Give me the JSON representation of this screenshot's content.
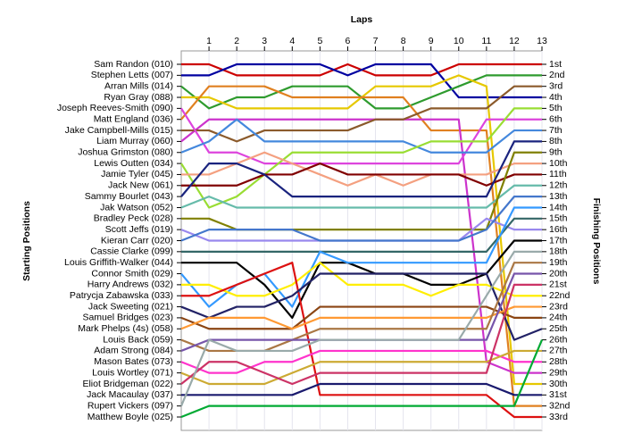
{
  "chart_data": {
    "type": "line",
    "title": "Laps",
    "ylabel": "Starting Positions",
    "y2label": "Finishing Positions",
    "x": [
      0,
      1,
      2,
      3,
      4,
      5,
      6,
      7,
      8,
      9,
      10,
      11,
      12,
      13
    ],
    "xlim": [
      0,
      13
    ],
    "xticks": [
      1,
      2,
      3,
      4,
      5,
      6,
      7,
      8,
      9,
      10,
      11,
      12,
      13
    ],
    "ylim": [
      1,
      33
    ],
    "grid": true,
    "categories": [
      "Sam Randon (010)",
      "Stephen Letts (007)",
      "Arran Mills (014)",
      "Ryan Gray (088)",
      "Joseph Reeves-Smith (090)",
      "Matt England (036)",
      "Jake Campbell-Mills (015)",
      "Liam Murray (060)",
      "Joshua Grimston (080)",
      "Lewis Outten (034)",
      "Jamie Tyler (045)",
      "Jack New (061)",
      "Sammy Bourlet (043)",
      "Jak Watson (052)",
      "Bradley Peck (028)",
      "Scott Jeffs (019)",
      "Kieran Carr (020)",
      "Cassie Clarke (099)",
      "Louis Griffith-Walker (044)",
      "Connor Smith (029)",
      "Harry Andrews (032)",
      "Patrycja Zabawska (033)",
      "Jack Sweeting (021)",
      "Samuel Bridges (023)",
      "Mark Phelps (4s) (058)",
      "Louis Back (059)",
      "Adam Strong (084)",
      "Mason Bates (073)",
      "Louis Wortley (071)",
      "Eliot Bridgeman (022)",
      "Jack Macaulay (037)",
      "Rupert Vickers (097)",
      "Matthew Boyle (025)"
    ],
    "y2_labels": [
      "1st",
      "2nd",
      "3rd",
      "4th",
      "5th",
      "6th",
      "7th",
      "8th",
      "9th",
      "10th",
      "11th",
      "12th",
      "13th",
      "14th",
      "15th",
      "16th",
      "17th",
      "18th",
      "19th",
      "20th",
      "21st",
      "22nd",
      "23rd",
      "24th",
      "25th",
      "26th",
      "27th",
      "28th",
      "29th",
      "30th",
      "31st",
      "32nd",
      "33rd"
    ],
    "series": [
      {
        "name": "Sam Randon (010)",
        "color": "#cc0000",
        "values": [
          1,
          1,
          2,
          2,
          2,
          2,
          1,
          2,
          2,
          2,
          1,
          1,
          1,
          1
        ]
      },
      {
        "name": "Stephen Letts (007)",
        "color": "#0000a0",
        "values": [
          2,
          2,
          1,
          1,
          1,
          1,
          2,
          1,
          1,
          1,
          4,
          4,
          4,
          4
        ]
      },
      {
        "name": "Arran Mills (014)",
        "color": "#2e9b2e",
        "values": [
          3,
          5,
          4,
          4,
          3,
          3,
          3,
          5,
          5,
          4,
          3,
          2,
          2,
          2
        ]
      },
      {
        "name": "Ryan Gray (088)",
        "color": "#e6c800",
        "values": [
          4,
          4,
          5,
          5,
          5,
          5,
          5,
          3,
          3,
          3,
          2,
          3,
          30,
          30
        ]
      },
      {
        "name": "Joseph Reeves-Smith (090)",
        "color": "#e08020",
        "values": [
          6,
          3,
          3,
          3,
          4,
          4,
          4,
          4,
          4,
          7,
          7,
          7,
          32,
          32
        ]
      },
      {
        "name": "Matt England (036)",
        "color": "#cc33cc",
        "values": [
          8,
          6,
          6,
          6,
          6,
          6,
          6,
          6,
          6,
          6,
          6,
          28,
          29,
          29
        ]
      },
      {
        "name": "Jake Campbell-Mills (015)",
        "color": "#8b5a2b",
        "values": [
          7,
          7,
          8,
          7,
          7,
          7,
          7,
          6,
          6,
          5,
          5,
          5,
          3,
          3
        ]
      },
      {
        "name": "Liam Murray (060)",
        "color": "#dd44dd",
        "values": [
          5,
          9,
          9,
          10,
          10,
          10,
          10,
          10,
          10,
          10,
          10,
          6,
          6,
          6
        ]
      },
      {
        "name": "Joshua Grimston (080)",
        "color": "#4488dd",
        "values": [
          9,
          8,
          6,
          8,
          8,
          8,
          8,
          8,
          8,
          9,
          9,
          9,
          7,
          7
        ]
      },
      {
        "name": "Lewis Outten (034)",
        "color": "#99dd33",
        "values": [
          10,
          14,
          13,
          11,
          9,
          9,
          9,
          9,
          9,
          8,
          8,
          8,
          5,
          5
        ]
      },
      {
        "name": "Jamie Tyler (045)",
        "color": "#f4a080",
        "values": [
          11,
          11,
          10,
          9,
          10,
          11,
          12,
          11,
          12,
          11,
          11,
          11,
          10,
          10
        ]
      },
      {
        "name": "Jack New (061)",
        "color": "#800000",
        "values": [
          12,
          12,
          12,
          11,
          11,
          10,
          11,
          11,
          11,
          11,
          11,
          12,
          11,
          11
        ]
      },
      {
        "name": "Sammy Bourlet (043)",
        "color": "#1a237e",
        "values": [
          13,
          10,
          10,
          11,
          13,
          13,
          13,
          13,
          13,
          13,
          13,
          13,
          8,
          8
        ]
      },
      {
        "name": "Jak Watson (052)",
        "color": "#66bbaa",
        "values": [
          14,
          13,
          14,
          14,
          14,
          14,
          14,
          14,
          14,
          14,
          14,
          14,
          12,
          12
        ]
      },
      {
        "name": "Bradley Peck (028)",
        "color": "#808000",
        "values": [
          15,
          15,
          16,
          16,
          16,
          16,
          16,
          16,
          16,
          16,
          16,
          16,
          9,
          9
        ]
      },
      {
        "name": "Scott Jeffs (019)",
        "color": "#9988ee",
        "values": [
          16,
          17,
          17,
          17,
          17,
          17,
          17,
          17,
          17,
          17,
          17,
          15,
          16,
          16
        ]
      },
      {
        "name": "Kieran Carr (020)",
        "color": "#4477cc",
        "values": [
          17,
          16,
          16,
          16,
          16,
          17,
          17,
          17,
          17,
          17,
          17,
          16,
          13,
          13
        ]
      },
      {
        "name": "Cassie Clarke (099)",
        "color": "#336666",
        "values": [
          18,
          18,
          18,
          18,
          18,
          18,
          18,
          18,
          18,
          18,
          18,
          18,
          15,
          15
        ]
      },
      {
        "name": "Louis Griffith-Walker (044)",
        "color": "#000000",
        "values": [
          19,
          19,
          19,
          21,
          24,
          19,
          19,
          20,
          20,
          21,
          21,
          20,
          17,
          17
        ]
      },
      {
        "name": "Connor Smith (029)",
        "color": "#3399ff",
        "values": [
          20,
          23,
          21,
          20,
          23,
          18,
          19,
          19,
          19,
          19,
          19,
          19,
          14,
          14
        ]
      },
      {
        "name": "Harry Andrews (032)",
        "color": "#ffee00",
        "values": [
          21,
          21,
          22,
          22,
          21,
          19,
          21,
          21,
          21,
          22,
          21,
          21,
          22,
          22
        ]
      },
      {
        "name": "Patrycja Zabawska (033)",
        "color": "#dd1111",
        "values": [
          22,
          22,
          21,
          20,
          19,
          31,
          31,
          31,
          31,
          31,
          31,
          31,
          33,
          33
        ]
      },
      {
        "name": "Jack Sweeting (021)",
        "color": "#222266",
        "values": [
          23,
          24,
          23,
          23,
          22,
          20,
          20,
          20,
          20,
          20,
          20,
          20,
          26,
          25
        ]
      },
      {
        "name": "Samuel Bridges (023)",
        "color": "#8b4513",
        "values": [
          24,
          25,
          25,
          25,
          25,
          23,
          23,
          23,
          23,
          23,
          23,
          23,
          24,
          24
        ]
      },
      {
        "name": "Mark Phelps (4s) (058)",
        "color": "#ff9933",
        "values": [
          25,
          24,
          24,
          24,
          25,
          24,
          24,
          24,
          24,
          24,
          24,
          24,
          23,
          23
        ]
      },
      {
        "name": "Louis Back (059)",
        "color": "#aa7744",
        "values": [
          26,
          27,
          27,
          27,
          26,
          25,
          25,
          25,
          25,
          25,
          25,
          25,
          19,
          19
        ]
      },
      {
        "name": "Adam Strong (084)",
        "color": "#7755aa",
        "values": [
          27,
          26,
          26,
          26,
          26,
          26,
          26,
          26,
          26,
          26,
          26,
          26,
          20,
          20
        ]
      },
      {
        "name": "Mason Bates (073)",
        "color": "#ff33cc",
        "values": [
          28,
          29,
          29,
          28,
          28,
          27,
          27,
          27,
          27,
          27,
          27,
          27,
          28,
          28
        ]
      },
      {
        "name": "Louis Wortley (071)",
        "color": "#ccaa33",
        "values": [
          29,
          30,
          30,
          30,
          29,
          28,
          28,
          28,
          28,
          28,
          28,
          28,
          27,
          27
        ]
      },
      {
        "name": "Eliot Bridgeman (022)",
        "color": "#cc3366",
        "values": [
          30,
          28,
          28,
          29,
          30,
          29,
          29,
          29,
          29,
          29,
          29,
          29,
          21,
          21
        ]
      },
      {
        "name": "Jack Macaulay (037)",
        "color": "#1a1a6e",
        "values": [
          31,
          31,
          31,
          31,
          31,
          30,
          30,
          30,
          30,
          30,
          30,
          30,
          31,
          31
        ]
      },
      {
        "name": "Rupert Vickers (097)",
        "color": "#99aaaa",
        "values": [
          32,
          26,
          27,
          27,
          27,
          26,
          26,
          26,
          26,
          26,
          26,
          22,
          18,
          18
        ]
      },
      {
        "name": "Matthew Boyle (025)",
        "color": "#00aa33",
        "values": [
          33,
          32,
          32,
          32,
          32,
          32,
          32,
          32,
          32,
          32,
          32,
          32,
          32,
          26
        ]
      }
    ]
  }
}
